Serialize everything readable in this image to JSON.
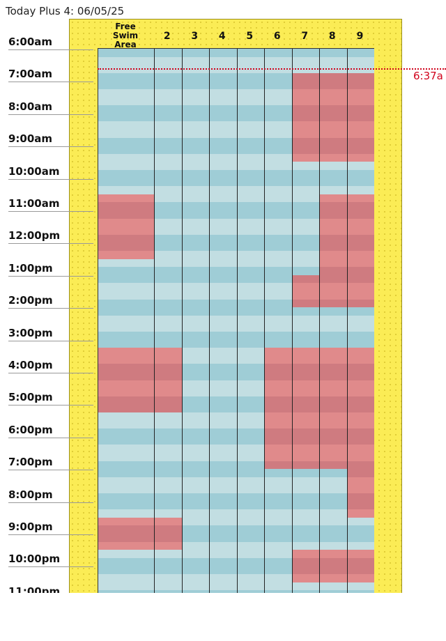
{
  "header": {
    "title": "Today Plus 4: 06/05/25"
  },
  "lanes": [
    {
      "label": "Free Swim Area"
    },
    {
      "label": "2"
    },
    {
      "label": "3"
    },
    {
      "label": "4"
    },
    {
      "label": "5"
    },
    {
      "label": "6"
    },
    {
      "label": "7"
    },
    {
      "label": "8"
    },
    {
      "label": "9"
    }
  ],
  "hours": [
    "6:00am",
    "7:00am",
    "8:00am",
    "9:00am",
    "10:00am",
    "11:00am",
    "12:00pm",
    "1:00pm",
    "2:00pm",
    "3:00pm",
    "4:00pm",
    "5:00pm",
    "6:00pm",
    "7:00pm",
    "8:00pm",
    "9:00pm",
    "10:00pm",
    "11:00pm"
  ],
  "schedule": {
    "day_start_hour": 6,
    "reservations": [
      {
        "lanes": [
          7,
          9
        ],
        "start": 6.75,
        "end": 9.5
      },
      {
        "lanes": [
          1,
          1
        ],
        "start": 10.5,
        "end": 12.5
      },
      {
        "lanes": [
          8,
          9
        ],
        "start": 10.5,
        "end": 13.0
      },
      {
        "lanes": [
          7,
          9
        ],
        "start": 13.0,
        "end": 14.0
      },
      {
        "lanes": [
          1,
          2
        ],
        "start": 15.25,
        "end": 17.25
      },
      {
        "lanes": [
          6,
          9
        ],
        "start": 15.25,
        "end": 19.0
      },
      {
        "lanes": [
          9,
          9
        ],
        "start": 19.0,
        "end": 20.5
      },
      {
        "lanes": [
          1,
          2
        ],
        "start": 20.5,
        "end": 21.5
      },
      {
        "lanes": [
          7,
          9
        ],
        "start": 21.5,
        "end": 22.5
      }
    ]
  },
  "now_marker": {
    "label": "6:37a",
    "time": 6.617
  },
  "colors": {
    "frame_yellow": "#fbec55",
    "free_light": "#c2dee2",
    "free_dark": "#9fcdd6",
    "reserved_light": "#e08a8b",
    "reserved_dark": "#cf7b80",
    "now_line": "#d0021b"
  }
}
